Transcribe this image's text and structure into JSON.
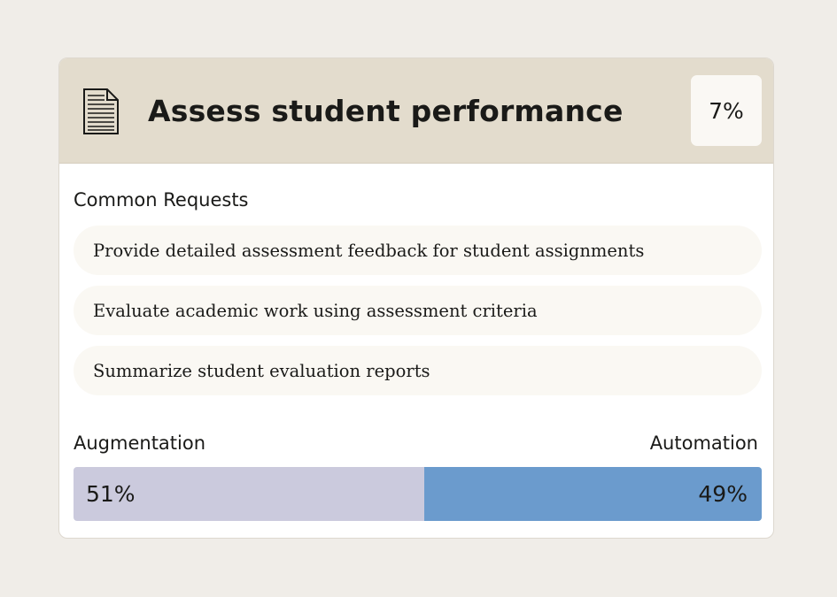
{
  "header": {
    "icon": "document-icon",
    "title": "Assess student performance",
    "share": "7%"
  },
  "requests": {
    "label": "Common Requests",
    "items": [
      "Provide detailed assessment feedback for student assignments",
      "Evaluate academic work using assessment criteria",
      "Summarize student evaluation reports"
    ]
  },
  "split": {
    "left_label": "Augmentation",
    "right_label": "Automation",
    "augmentation": {
      "value": 51,
      "text": "51%",
      "color": "#cbcadd"
    },
    "automation": {
      "value": 49,
      "text": "49%",
      "color": "#6b9bcd"
    }
  },
  "colors": {
    "page_bg": "#f0ede8",
    "header_bg": "#e3dccd",
    "text": "#1a1a18"
  }
}
